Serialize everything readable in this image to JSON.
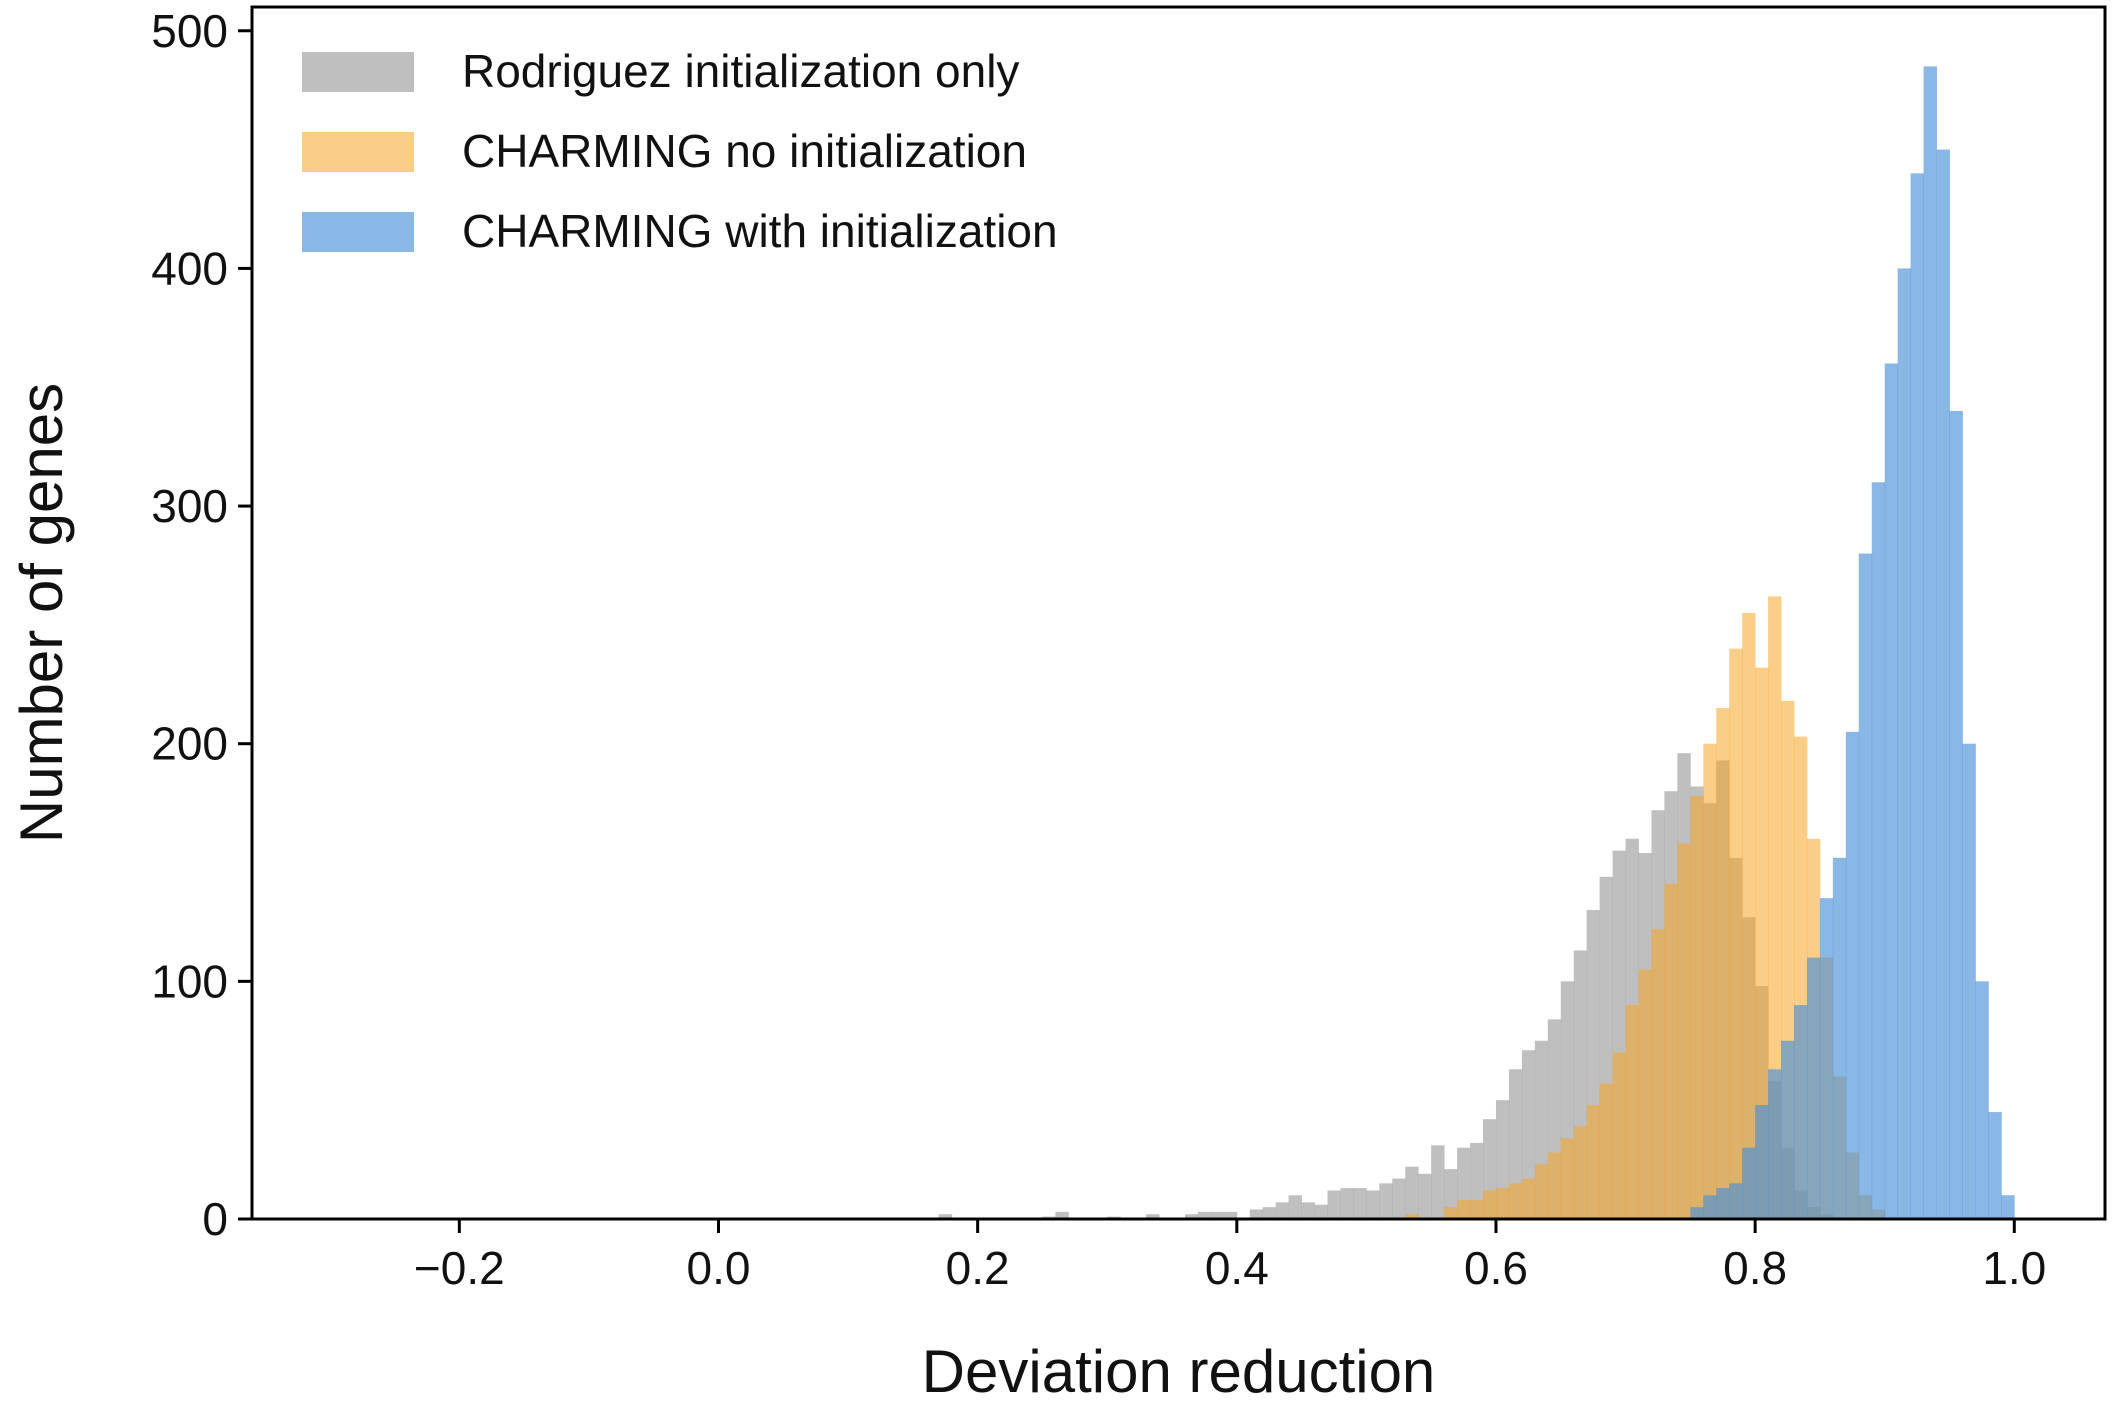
{
  "chart_data": {
    "type": "bar",
    "subtype": "overlapping-histogram",
    "title": "",
    "xlabel": "Deviation reduction",
    "ylabel": "Number of genes",
    "xlim": [
      -0.36,
      1.07
    ],
    "ylim": [
      0,
      510
    ],
    "xticks": [
      -0.2,
      0.0,
      0.2,
      0.4,
      0.6,
      0.8,
      1.0
    ],
    "xtick_labels": [
      "−0.2",
      "0.0",
      "0.2",
      "0.4",
      "0.6",
      "0.8",
      "1.0"
    ],
    "yticks": [
      0,
      100,
      200,
      300,
      400,
      500
    ],
    "ytick_labels": [
      "0",
      "100",
      "200",
      "300",
      "400",
      "500"
    ],
    "grid": false,
    "legend_position": "upper-left",
    "series": [
      {
        "name": "Rodriguez initialization only",
        "color": "#a9a9a9",
        "opacity": 0.75,
        "bins": [
          [
            0.17,
            0.18,
            2
          ],
          [
            0.25,
            0.26,
            1
          ],
          [
            0.26,
            0.27,
            3
          ],
          [
            0.3,
            0.31,
            1
          ],
          [
            0.33,
            0.34,
            2
          ],
          [
            0.36,
            0.37,
            2
          ],
          [
            0.37,
            0.38,
            3
          ],
          [
            0.38,
            0.39,
            3
          ],
          [
            0.39,
            0.4,
            3
          ],
          [
            0.41,
            0.42,
            4
          ],
          [
            0.42,
            0.43,
            5
          ],
          [
            0.43,
            0.44,
            7
          ],
          [
            0.44,
            0.45,
            10
          ],
          [
            0.45,
            0.46,
            7
          ],
          [
            0.46,
            0.47,
            6
          ],
          [
            0.47,
            0.48,
            12
          ],
          [
            0.48,
            0.49,
            13
          ],
          [
            0.49,
            0.5,
            13
          ],
          [
            0.5,
            0.51,
            12
          ],
          [
            0.51,
            0.52,
            15
          ],
          [
            0.52,
            0.53,
            17
          ],
          [
            0.53,
            0.54,
            22
          ],
          [
            0.54,
            0.55,
            19
          ],
          [
            0.55,
            0.56,
            31
          ],
          [
            0.56,
            0.57,
            21
          ],
          [
            0.57,
            0.58,
            30
          ],
          [
            0.58,
            0.59,
            32
          ],
          [
            0.59,
            0.6,
            42
          ],
          [
            0.6,
            0.61,
            50
          ],
          [
            0.61,
            0.62,
            63
          ],
          [
            0.62,
            0.63,
            71
          ],
          [
            0.63,
            0.64,
            75
          ],
          [
            0.64,
            0.65,
            84
          ],
          [
            0.65,
            0.66,
            100
          ],
          [
            0.66,
            0.67,
            113
          ],
          [
            0.67,
            0.68,
            130
          ],
          [
            0.68,
            0.69,
            144
          ],
          [
            0.69,
            0.7,
            155
          ],
          [
            0.7,
            0.71,
            160
          ],
          [
            0.71,
            0.72,
            154
          ],
          [
            0.72,
            0.73,
            172
          ],
          [
            0.73,
            0.74,
            180
          ],
          [
            0.74,
            0.75,
            196
          ],
          [
            0.75,
            0.76,
            182
          ],
          [
            0.76,
            0.77,
            175
          ],
          [
            0.77,
            0.78,
            193
          ],
          [
            0.78,
            0.79,
            152
          ],
          [
            0.79,
            0.8,
            127
          ],
          [
            0.8,
            0.81,
            98
          ],
          [
            0.81,
            0.82,
            58
          ],
          [
            0.82,
            0.83,
            30
          ],
          [
            0.83,
            0.84,
            12
          ],
          [
            0.84,
            0.85,
            5
          ],
          [
            0.85,
            0.86,
            2
          ]
        ]
      },
      {
        "name": "CHARMING no initialization",
        "color": "#f5a623",
        "opacity": 0.55,
        "bins": [
          [
            0.53,
            0.54,
            2
          ],
          [
            0.56,
            0.57,
            5
          ],
          [
            0.57,
            0.58,
            8
          ],
          [
            0.58,
            0.59,
            8
          ],
          [
            0.59,
            0.6,
            12
          ],
          [
            0.6,
            0.61,
            13
          ],
          [
            0.61,
            0.62,
            15
          ],
          [
            0.62,
            0.63,
            17
          ],
          [
            0.63,
            0.64,
            23
          ],
          [
            0.64,
            0.65,
            28
          ],
          [
            0.65,
            0.66,
            34
          ],
          [
            0.66,
            0.67,
            39
          ],
          [
            0.67,
            0.68,
            48
          ],
          [
            0.68,
            0.69,
            57
          ],
          [
            0.69,
            0.7,
            70
          ],
          [
            0.7,
            0.71,
            90
          ],
          [
            0.71,
            0.72,
            105
          ],
          [
            0.72,
            0.73,
            122
          ],
          [
            0.73,
            0.74,
            141
          ],
          [
            0.74,
            0.75,
            158
          ],
          [
            0.75,
            0.76,
            178
          ],
          [
            0.76,
            0.77,
            200
          ],
          [
            0.77,
            0.78,
            215
          ],
          [
            0.78,
            0.79,
            240
          ],
          [
            0.79,
            0.8,
            255
          ],
          [
            0.8,
            0.81,
            232
          ],
          [
            0.81,
            0.82,
            262
          ],
          [
            0.82,
            0.83,
            218
          ],
          [
            0.83,
            0.84,
            203
          ],
          [
            0.84,
            0.85,
            160
          ],
          [
            0.85,
            0.86,
            110
          ],
          [
            0.86,
            0.87,
            60
          ],
          [
            0.87,
            0.88,
            28
          ],
          [
            0.88,
            0.89,
            10
          ],
          [
            0.89,
            0.9,
            4
          ]
        ]
      },
      {
        "name": "CHARMING with initialization",
        "color": "#4a90d9",
        "opacity": 0.65,
        "bins": [
          [
            0.75,
            0.76,
            5
          ],
          [
            0.76,
            0.77,
            10
          ],
          [
            0.77,
            0.78,
            13
          ],
          [
            0.78,
            0.79,
            15
          ],
          [
            0.79,
            0.8,
            30
          ],
          [
            0.8,
            0.81,
            48
          ],
          [
            0.81,
            0.82,
            63
          ],
          [
            0.82,
            0.83,
            75
          ],
          [
            0.83,
            0.84,
            90
          ],
          [
            0.84,
            0.85,
            110
          ],
          [
            0.85,
            0.86,
            135
          ],
          [
            0.86,
            0.87,
            152
          ],
          [
            0.87,
            0.88,
            205
          ],
          [
            0.88,
            0.89,
            280
          ],
          [
            0.89,
            0.9,
            310
          ],
          [
            0.9,
            0.91,
            360
          ],
          [
            0.91,
            0.92,
            400
          ],
          [
            0.92,
            0.93,
            440
          ],
          [
            0.93,
            0.94,
            485
          ],
          [
            0.94,
            0.95,
            450
          ],
          [
            0.95,
            0.96,
            340
          ],
          [
            0.96,
            0.97,
            200
          ],
          [
            0.97,
            0.98,
            100
          ],
          [
            0.98,
            0.99,
            45
          ],
          [
            0.99,
            1.0,
            10
          ]
        ]
      }
    ]
  }
}
